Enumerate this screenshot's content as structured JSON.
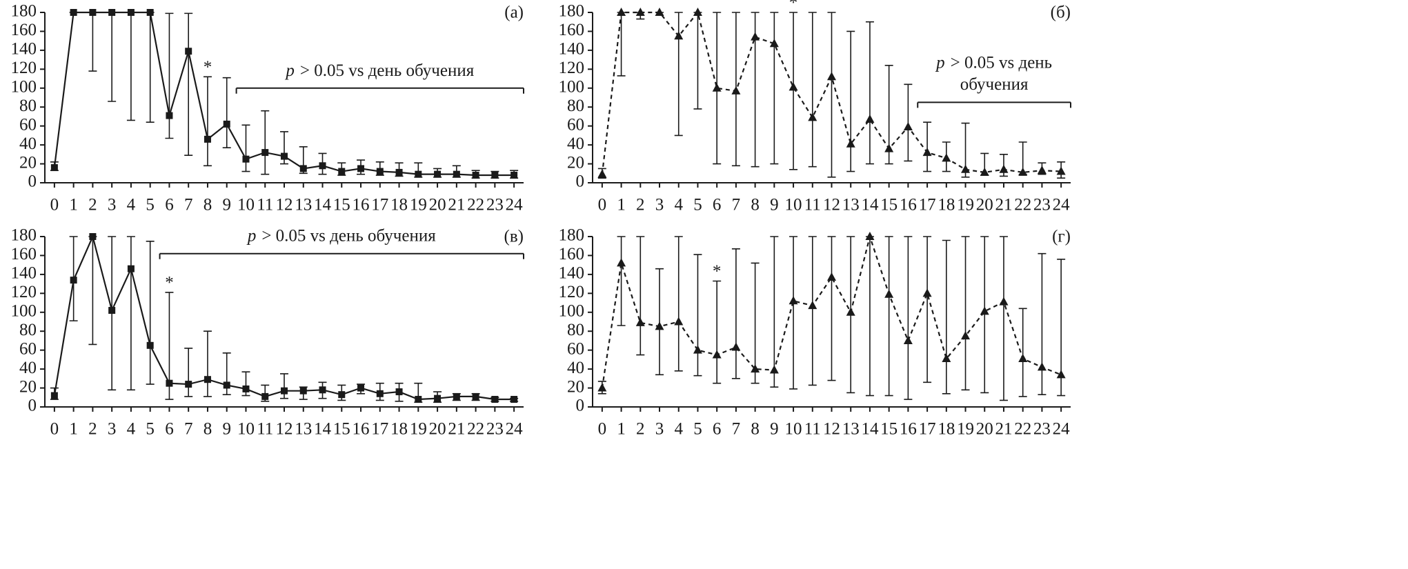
{
  "chart_data": [
    {
      "type": "line",
      "panel_label": "(а)",
      "marker": "square",
      "line_style": "solid",
      "color": "#1a1a1a",
      "x": [
        0,
        1,
        2,
        3,
        4,
        5,
        6,
        7,
        8,
        9,
        10,
        11,
        12,
        13,
        14,
        15,
        16,
        17,
        18,
        19,
        20,
        21,
        22,
        23,
        24
      ],
      "values": [
        16,
        180,
        180,
        180,
        180,
        180,
        71,
        139,
        46,
        62,
        25,
        32,
        28,
        15,
        18,
        12,
        15,
        12,
        11,
        9,
        9,
        9,
        8,
        8,
        8
      ],
      "lower": [
        13,
        180,
        118,
        86,
        66,
        64,
        47,
        29,
        18,
        37,
        12,
        9,
        20,
        10,
        9,
        8,
        9,
        8,
        7,
        6,
        6,
        6,
        5,
        5,
        5
      ],
      "upper": [
        22,
        180,
        180,
        180,
        180,
        180,
        179,
        179,
        112,
        111,
        61,
        76,
        54,
        38,
        31,
        21,
        24,
        22,
        21,
        21,
        15,
        18,
        13,
        12,
        13
      ],
      "xlim": [
        -0.5,
        24.5
      ],
      "xticks": [
        0,
        1,
        2,
        3,
        4,
        5,
        6,
        7,
        8,
        9,
        10,
        11,
        12,
        13,
        14,
        15,
        16,
        17,
        18,
        19,
        20,
        21,
        22,
        23,
        24
      ],
      "ylim": [
        0,
        180
      ],
      "yticks": [
        0,
        20,
        40,
        60,
        80,
        100,
        120,
        140,
        160,
        180
      ],
      "annotations": [
        {
          "text": "*",
          "x": 8
        }
      ],
      "note": {
        "italic": "p",
        "lines": [
          "> 0.05  vs день обучения"
        ],
        "x": [
          9.5,
          24.5
        ],
        "y": 100
      }
    },
    {
      "type": "line",
      "panel_label": "(б)",
      "marker": "triangle",
      "line_style": "dashed",
      "color": "#1a1a1a",
      "x": [
        0,
        1,
        2,
        3,
        4,
        5,
        6,
        7,
        8,
        9,
        10,
        11,
        12,
        13,
        14,
        15,
        16,
        17,
        18,
        19,
        20,
        21,
        22,
        23,
        24
      ],
      "values": [
        9,
        180,
        180,
        180,
        155,
        180,
        100,
        97,
        154,
        147,
        101,
        69,
        112,
        41,
        67,
        36,
        59,
        32,
        26,
        14,
        11,
        14,
        11,
        13,
        12
      ],
      "lower": [
        5,
        113,
        173,
        180,
        50,
        78,
        20,
        18,
        17,
        20,
        14,
        17,
        6,
        12,
        20,
        20,
        23,
        12,
        12,
        6,
        8,
        7,
        9,
        9,
        5
      ],
      "upper": [
        15,
        180,
        180,
        180,
        180,
        180,
        180,
        180,
        180,
        180,
        180,
        180,
        180,
        160,
        170,
        124,
        104,
        64,
        43,
        63,
        31,
        30,
        43,
        21,
        22
      ],
      "xlim": [
        -0.5,
        24.5
      ],
      "xticks": [
        0,
        1,
        2,
        3,
        4,
        5,
        6,
        7,
        8,
        9,
        10,
        11,
        12,
        13,
        14,
        15,
        16,
        17,
        18,
        19,
        20,
        21,
        22,
        23,
        24
      ],
      "ylim": [
        0,
        180
      ],
      "yticks": [
        0,
        20,
        40,
        60,
        80,
        100,
        120,
        140,
        160,
        180
      ],
      "annotations": [
        {
          "text": "*",
          "x": 10
        }
      ],
      "note": {
        "italic": "p",
        "lines": [
          "> 0.05  vs день",
          "обучения"
        ],
        "x": [
          16.5,
          24.5
        ],
        "y": 85
      }
    },
    {
      "type": "line",
      "panel_label": "(в)",
      "marker": "square",
      "line_style": "solid",
      "color": "#1a1a1a",
      "x": [
        0,
        1,
        2,
        3,
        4,
        5,
        6,
        7,
        8,
        9,
        10,
        11,
        12,
        13,
        14,
        15,
        16,
        17,
        18,
        19,
        20,
        21,
        22,
        23,
        24
      ],
      "values": [
        12,
        134,
        180,
        102,
        146,
        65,
        25,
        24,
        29,
        23,
        19,
        11,
        17,
        17,
        18,
        13,
        20,
        14,
        16,
        8,
        9,
        11,
        11,
        8,
        8
      ],
      "lower": [
        8,
        91,
        66,
        18,
        18,
        24,
        8,
        11,
        11,
        13,
        12,
        6,
        9,
        8,
        9,
        7,
        14,
        7,
        6,
        5,
        5,
        7,
        7,
        6,
        6
      ],
      "upper": [
        20,
        180,
        180,
        180,
        180,
        175,
        121,
        62,
        80,
        57,
        37,
        23,
        35,
        21,
        26,
        23,
        24,
        25,
        25,
        25,
        16,
        14,
        14,
        10,
        9
      ],
      "xlim": [
        -0.5,
        24.5
      ],
      "xticks": [
        0,
        1,
        2,
        3,
        4,
        5,
        6,
        7,
        8,
        9,
        10,
        11,
        12,
        13,
        14,
        15,
        16,
        17,
        18,
        19,
        20,
        21,
        22,
        23,
        24
      ],
      "ylim": [
        0,
        180
      ],
      "yticks": [
        0,
        20,
        40,
        60,
        80,
        100,
        120,
        140,
        160,
        180
      ],
      "annotations": [
        {
          "text": "*",
          "x": 6
        }
      ],
      "note": {
        "italic": "p",
        "lines": [
          "> 0.05  vs день обучения"
        ],
        "x": [
          5.5,
          24.5
        ],
        "y": 162
      }
    },
    {
      "type": "line",
      "panel_label": "(г)",
      "marker": "triangle",
      "line_style": "dashed",
      "color": "#1a1a1a",
      "x": [
        0,
        1,
        2,
        3,
        4,
        5,
        6,
        7,
        8,
        9,
        10,
        11,
        12,
        13,
        14,
        15,
        16,
        17,
        18,
        19,
        20,
        21,
        22,
        23,
        24
      ],
      "values": [
        20,
        152,
        89,
        85,
        90,
        60,
        55,
        63,
        40,
        39,
        112,
        107,
        137,
        100,
        180,
        119,
        70,
        120,
        51,
        75,
        101,
        111,
        51,
        42,
        34
      ],
      "lower": [
        14,
        86,
        55,
        34,
        38,
        33,
        25,
        30,
        25,
        21,
        19,
        23,
        28,
        15,
        12,
        12,
        8,
        26,
        14,
        18,
        15,
        7,
        11,
        13,
        12
      ],
      "upper": [
        27,
        180,
        180,
        146,
        180,
        161,
        133,
        167,
        152,
        180,
        180,
        180,
        180,
        180,
        180,
        180,
        180,
        180,
        176,
        180,
        180,
        180,
        104,
        162,
        156
      ],
      "xlim": [
        -0.5,
        24.5
      ],
      "xticks": [
        0,
        1,
        2,
        3,
        4,
        5,
        6,
        7,
        8,
        9,
        10,
        11,
        12,
        13,
        14,
        15,
        16,
        17,
        18,
        19,
        20,
        21,
        22,
        23,
        24
      ],
      "ylim": [
        0,
        180
      ],
      "yticks": [
        0,
        20,
        40,
        60,
        80,
        100,
        120,
        140,
        160,
        180
      ],
      "annotations": [
        {
          "text": "*",
          "x": 6
        }
      ]
    }
  ]
}
